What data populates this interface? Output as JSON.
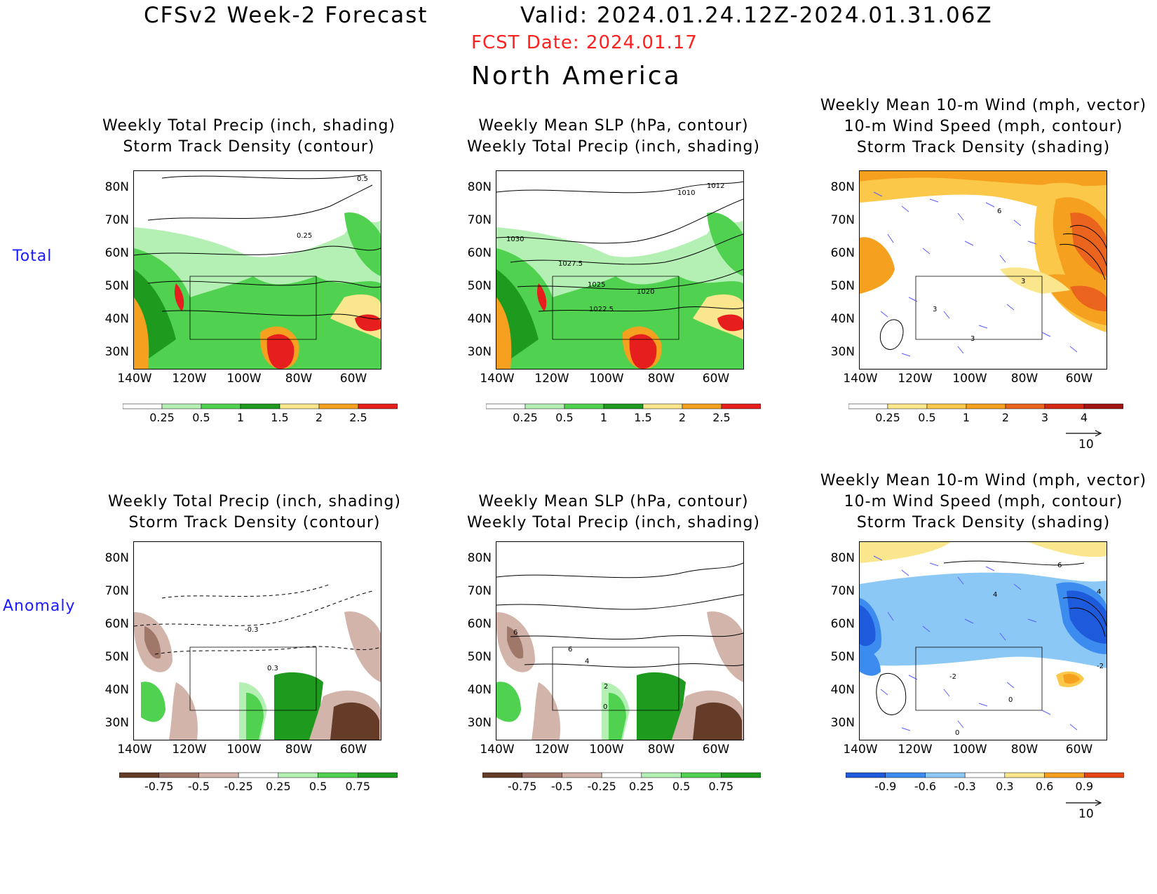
{
  "header": {
    "title_left": "CFSv2 Week-2 Forecast",
    "title_right": "Valid: 2024.01.24.12Z-2024.01.31.06Z",
    "fcst_date": "FCST Date: 2024.01.17",
    "region": "North America"
  },
  "rows": {
    "total": "Total",
    "anomaly": "Anomaly"
  },
  "axes": {
    "lat_labels": [
      "80N",
      "70N",
      "60N",
      "50N",
      "40N",
      "30N"
    ],
    "lon_labels": [
      "140W",
      "120W",
      "100W",
      "80W",
      "60W"
    ]
  },
  "panels": {
    "p1": {
      "line1": "Weekly Total Precip (inch, shading)",
      "line2": "Storm Track Density (contour)",
      "line3": ""
    },
    "p2": {
      "line1": "Weekly Mean SLP (hPa, contour)",
      "line2": "Weekly Total Precip (inch, shading)",
      "line3": ""
    },
    "p3": {
      "line1": "Weekly Mean 10-m Wind (mph, vector)",
      "line2": "10-m Wind Speed (mph, contour)",
      "line3": "Storm Track Density (shading)"
    },
    "p4": {
      "line1": "Weekly Total Precip (inch, shading)",
      "line2": "Storm Track Density (contour)",
      "line3": ""
    },
    "p5": {
      "line1": "Weekly Mean SLP (hPa, contour)",
      "line2": "Weekly Total Precip (inch, shading)",
      "line3": ""
    },
    "p6": {
      "line1": "Weekly Mean 10-m Wind (mph, vector)",
      "line2": "10-m Wind Speed (mph, contour)",
      "line3": "Storm Track Density (shading)"
    }
  },
  "contour_labels": {
    "p1": [
      "0.5",
      "0.25"
    ],
    "p2": [
      "1012",
      "1010",
      "1030",
      "1027.5",
      "1025",
      "1020",
      "1022.5"
    ],
    "p3": [
      "6",
      "3",
      "3",
      "3"
    ],
    "p4": [
      "-0.3",
      "0.3"
    ],
    "p5": [
      "6",
      "6",
      "4",
      "2",
      "0"
    ],
    "p6": [
      "6",
      "4",
      "4",
      "-2",
      "-2",
      "0",
      "0"
    ]
  },
  "colorbars": {
    "precip_total": {
      "labels": [
        "0.25",
        "0.5",
        "1",
        "1.5",
        "2",
        "2.5"
      ],
      "colors": [
        "#ffffff",
        "#b4f0b4",
        "#50d250",
        "#1e9b1e",
        "#fae68c",
        "#f5a01e",
        "#e61e1e"
      ]
    },
    "density_total": {
      "labels": [
        "0.25",
        "0.5",
        "1",
        "2",
        "3",
        "4"
      ],
      "colors": [
        "#ffffff",
        "#ffe88c",
        "#fbc84a",
        "#f5a01e",
        "#eb641e",
        "#d22814",
        "#a01414"
      ]
    },
    "precip_anom": {
      "labels": [
        "-0.75",
        "-0.5",
        "-0.25",
        "0.25",
        "0.5",
        "0.75"
      ],
      "colors": [
        "#643c28",
        "#a0786a",
        "#d2b4aa",
        "#ffffff",
        "#b4f0b4",
        "#50d250",
        "#1e9b1e"
      ]
    },
    "density_anom": {
      "labels": [
        "-0.9",
        "-0.6",
        "-0.3",
        "0.3",
        "0.6",
        "0.9"
      ],
      "colors": [
        "#1e5adc",
        "#3c8cf0",
        "#8cc8f5",
        "#ffffff",
        "#fae68c",
        "#f5a01e",
        "#e64614"
      ]
    }
  },
  "vector_scale": {
    "p3": "10",
    "p6": "10"
  },
  "map_shading": {
    "p1": "total precipitation shading (greens, yellows, oranges, reds)",
    "p2": "total precipitation shading with SLP contours",
    "p3": "storm track density shading (yellow/orange) with blue wind vectors",
    "p4": "precipitation anomaly shading (browns and greens)",
    "p5": "precipitation anomaly shading with SLP contours",
    "p6": "storm track density anomaly shading (blues and orange) with blue wind vectors"
  }
}
